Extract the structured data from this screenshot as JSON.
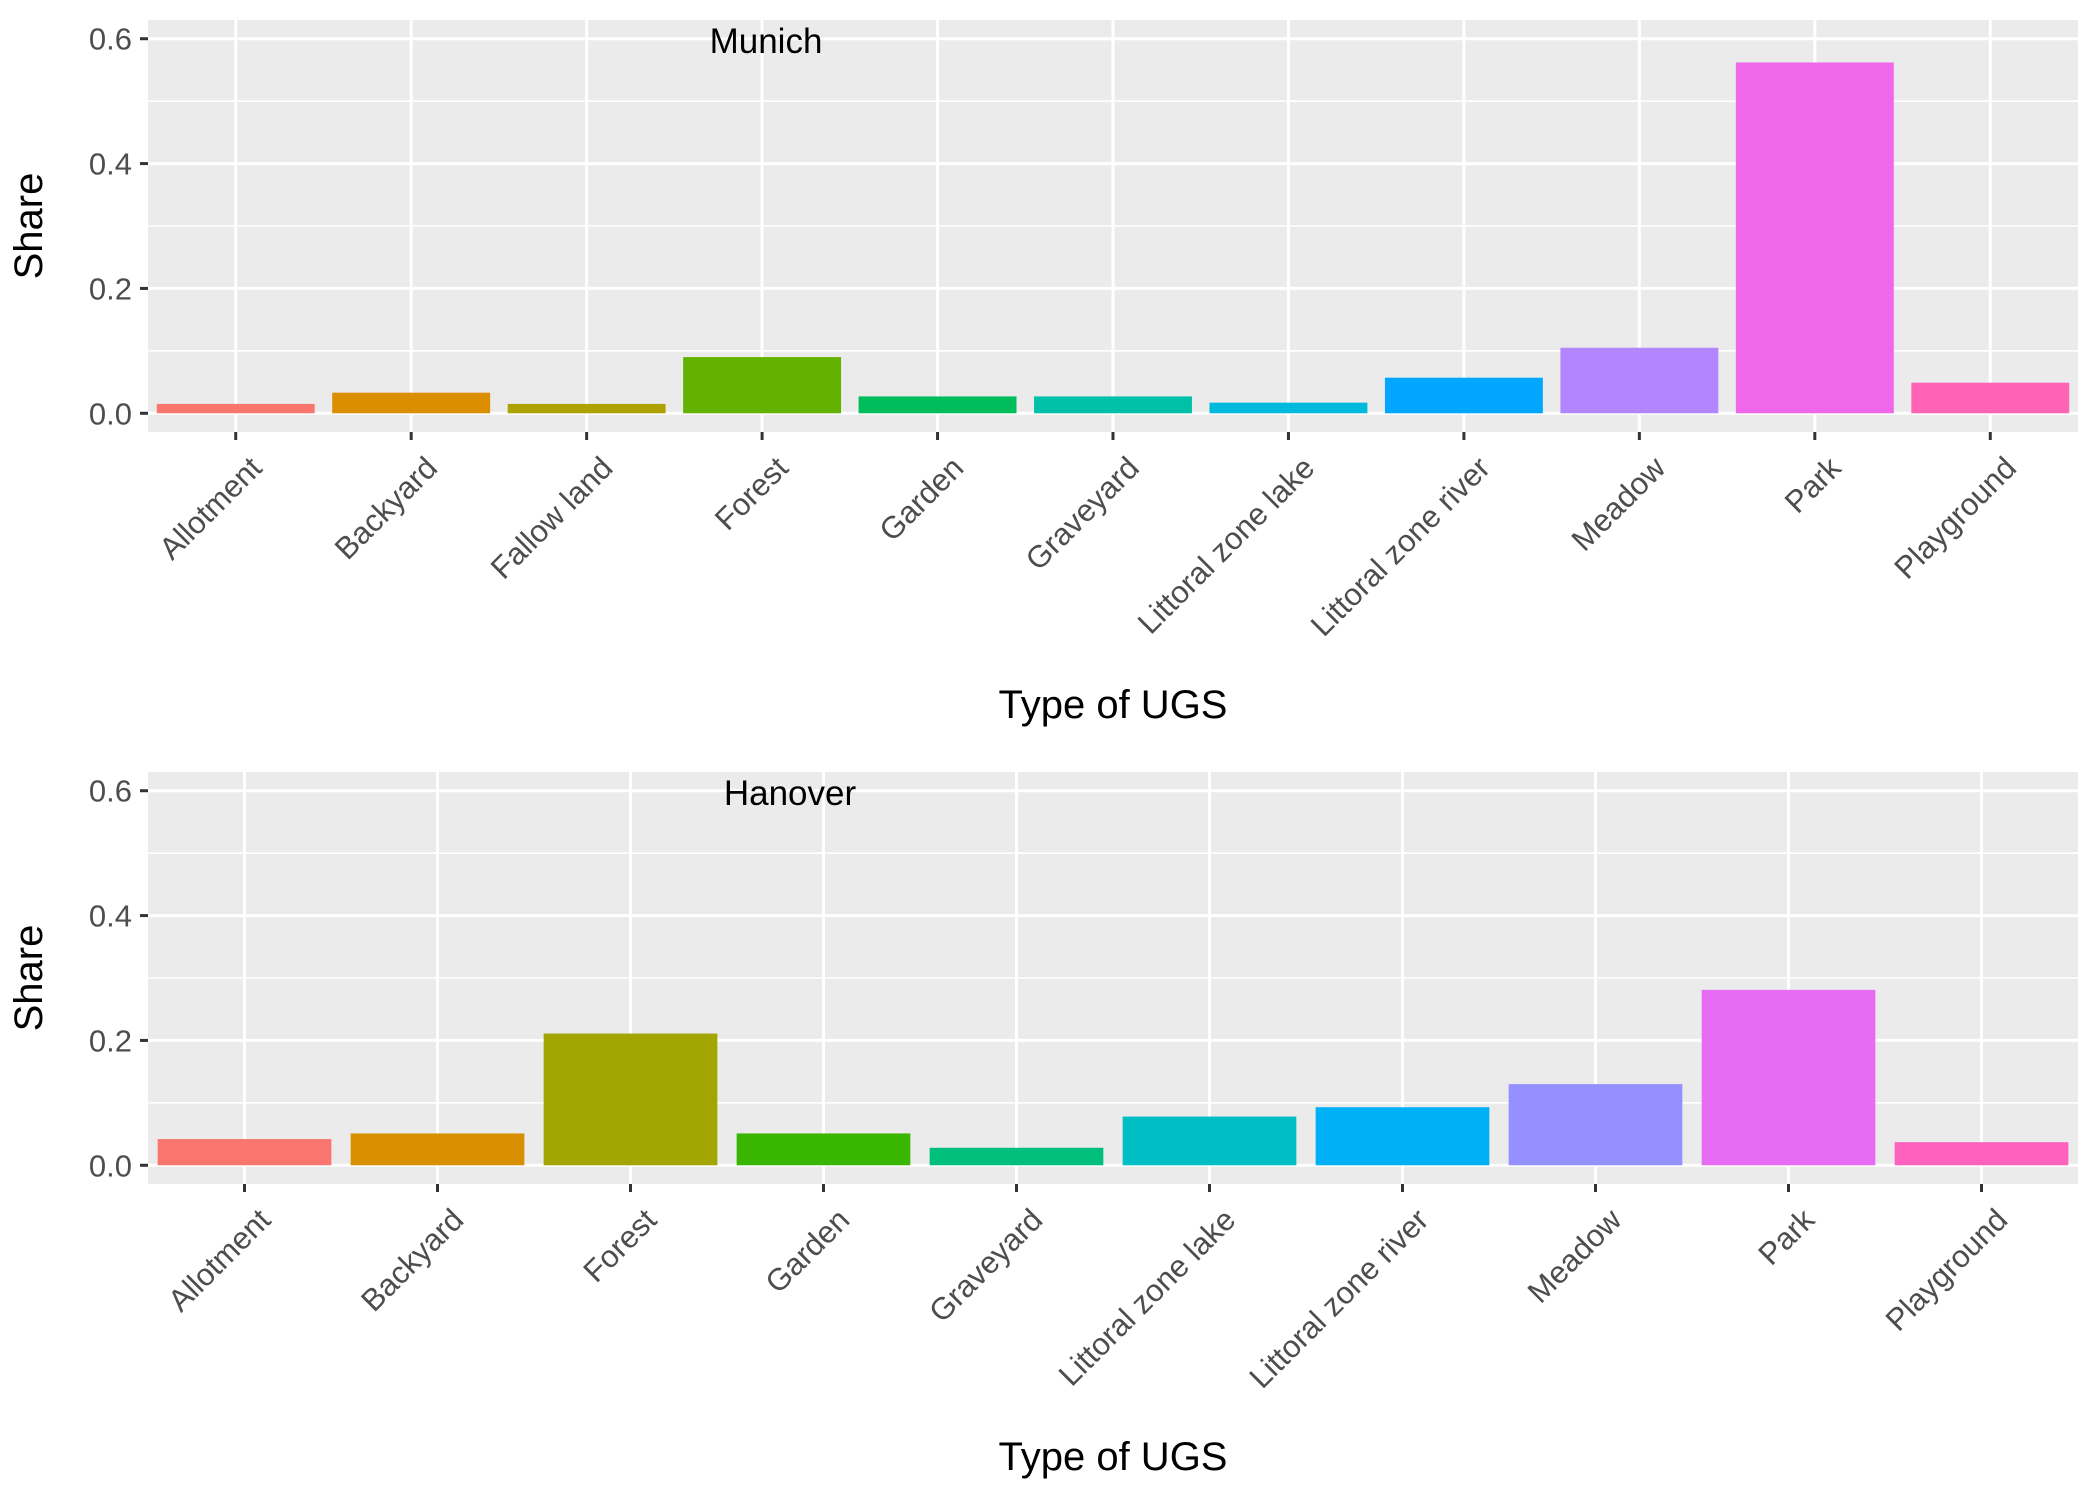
{
  "chart_data": [
    {
      "type": "bar",
      "title": "Munich",
      "xlabel": "Type of UGS",
      "ylabel": "Share",
      "ylim": [
        0,
        0.6
      ],
      "yticks": [
        0.0,
        0.2,
        0.4,
        0.6
      ],
      "ytick_labels": [
        "0.0",
        "0.2",
        "0.4",
        "0.6"
      ],
      "grid": true,
      "legend": "none",
      "categories": [
        "Allotment",
        "Backyard",
        "Fallow land",
        "Forest",
        "Garden",
        "Graveyard",
        "Littoral zone lake",
        "Littoral zone river",
        "Meadow",
        "Park",
        "Playground"
      ],
      "values": [
        0.015,
        0.033,
        0.015,
        0.09,
        0.027,
        0.027,
        0.017,
        0.057,
        0.105,
        0.562,
        0.049
      ],
      "colors": [
        "#F8766D",
        "#DB8E00",
        "#AEA200",
        "#64B200",
        "#00BD5C",
        "#00C1A7",
        "#00BADE",
        "#00A6FF",
        "#B385FF",
        "#EF67EB",
        "#FF63B6"
      ]
    },
    {
      "type": "bar",
      "title": "Hanover",
      "xlabel": "Type of UGS",
      "ylabel": "Share",
      "ylim": [
        0,
        0.6
      ],
      "yticks": [
        0.0,
        0.2,
        0.4,
        0.6
      ],
      "ytick_labels": [
        "0.0",
        "0.2",
        "0.4",
        "0.6"
      ],
      "grid": true,
      "legend": "none",
      "categories": [
        "Allotment",
        "Backyard",
        "Forest",
        "Garden",
        "Graveyard",
        "Littoral zone lake",
        "Littoral zone river",
        "Meadow",
        "Park",
        "Playground"
      ],
      "values": [
        0.042,
        0.051,
        0.211,
        0.051,
        0.028,
        0.078,
        0.093,
        0.13,
        0.281,
        0.037
      ],
      "colors": [
        "#F8766D",
        "#D89000",
        "#A3A500",
        "#39B600",
        "#00BF7D",
        "#00BFC4",
        "#00B0F6",
        "#9590FF",
        "#E76BF3",
        "#FF62BC"
      ]
    }
  ]
}
